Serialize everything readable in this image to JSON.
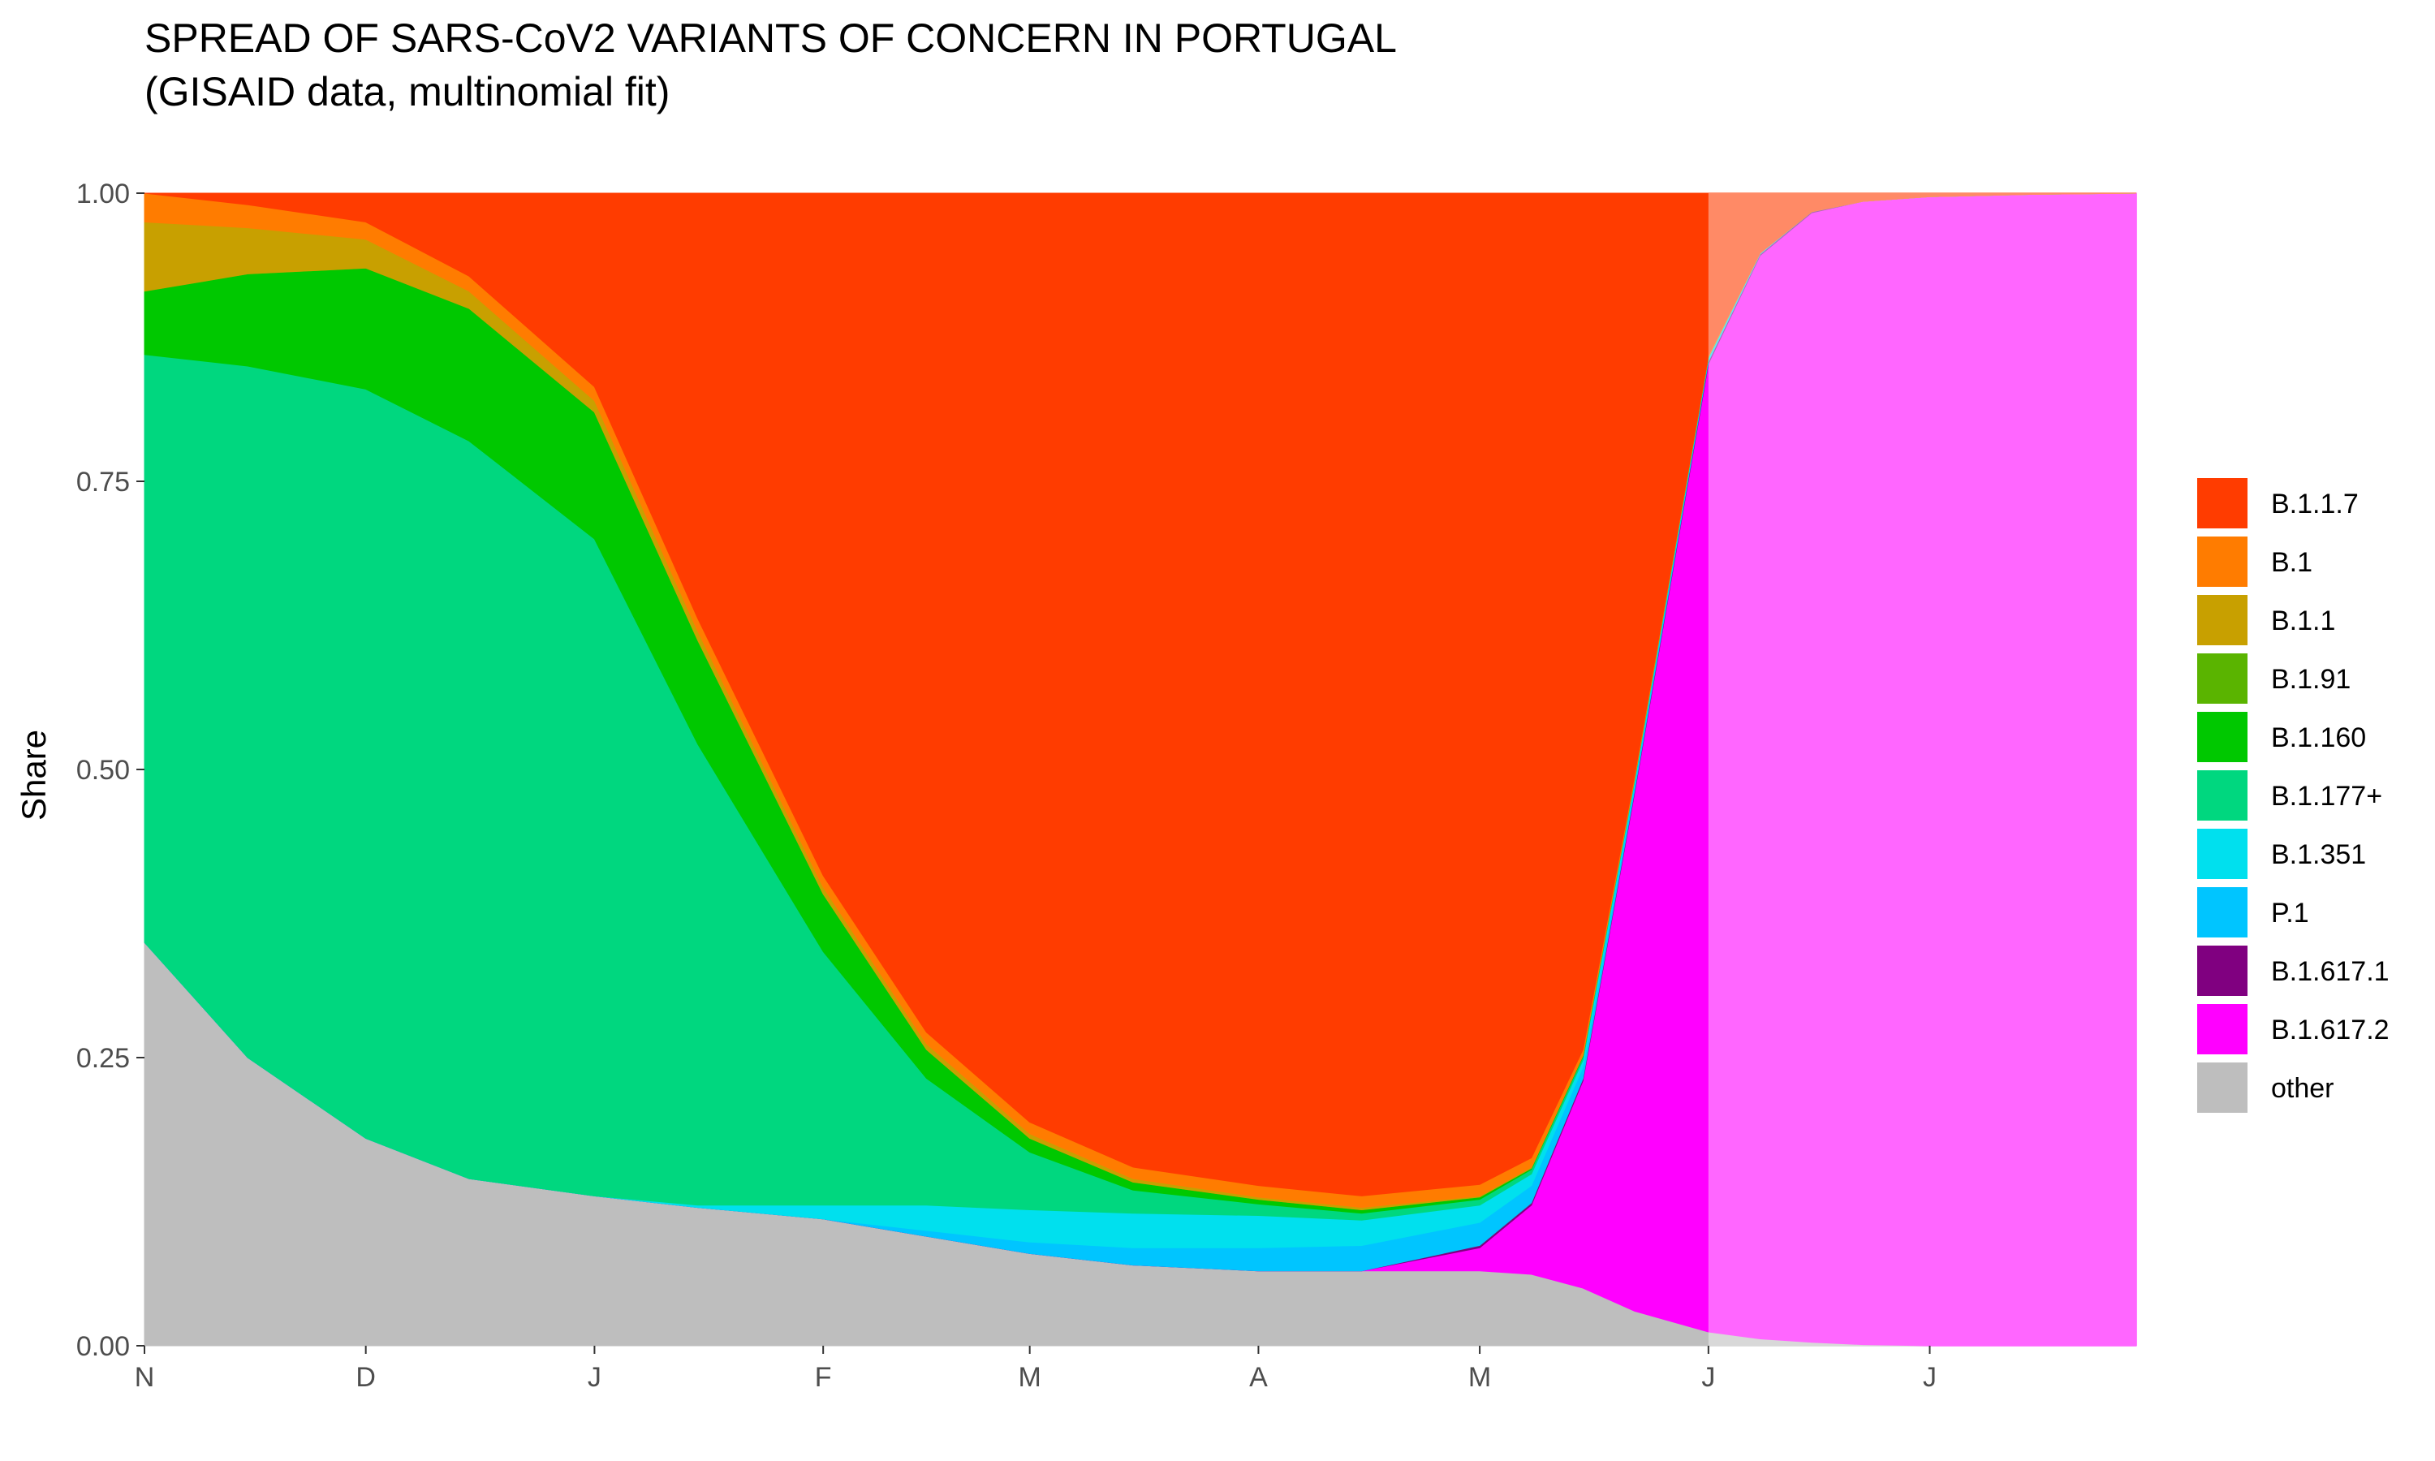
{
  "title": "SPREAD OF SARS-CoV2 VARIANTS OF CONCERN IN PORTUGAL",
  "subtitle": "(GISAID data, multinomial fit)",
  "chart_data": {
    "type": "area",
    "stacked": true,
    "ylabel": "Share",
    "xlabel": "",
    "ylim": [
      0,
      1
    ],
    "y_ticks": [
      "0.00",
      "0.25",
      "0.50",
      "0.75",
      "1.00"
    ],
    "y_tick_values": [
      0,
      0.25,
      0.5,
      0.75,
      1
    ],
    "x_tick_labels": [
      "N",
      "D",
      "J",
      "F",
      "M",
      "A",
      "M",
      "J",
      "J"
    ],
    "x_tick_dates": [
      "2020-11-01",
      "2020-12-01",
      "2021-01-01",
      "2021-02-01",
      "2021-03-01",
      "2021-04-01",
      "2021-05-01",
      "2021-06-01",
      "2021-07-01"
    ],
    "xlim": [
      "2020-11-01",
      "2021-07-29"
    ],
    "fit_end_date": "2021-06-01",
    "grid": false,
    "legend_position": "right",
    "x": [
      "2020-11-01",
      "2020-11-15",
      "2020-12-01",
      "2020-12-15",
      "2021-01-01",
      "2021-01-15",
      "2021-02-01",
      "2021-02-15",
      "2021-03-01",
      "2021-03-15",
      "2021-04-01",
      "2021-04-15",
      "2021-05-01",
      "2021-05-08",
      "2021-05-15",
      "2021-05-22",
      "2021-06-01",
      "2021-06-08",
      "2021-06-15",
      "2021-06-22",
      "2021-07-01",
      "2021-07-15",
      "2021-07-29"
    ],
    "series": [
      {
        "name": "other",
        "color": "#bebebe",
        "values": [
          0.35,
          0.25,
          0.18,
          0.145,
          0.13,
          0.12,
          0.11,
          0.095,
          0.08,
          0.07,
          0.065,
          0.065,
          0.065,
          0.062,
          0.05,
          0.03,
          0.012,
          0.006,
          0.003,
          0.001,
          0.0,
          0.0,
          0.0
        ]
      },
      {
        "name": "B.1.617.2",
        "color": "#ff00ff",
        "values": [
          0.0,
          0.0,
          0.0,
          0.0,
          0.0,
          0.0,
          0.0,
          0.0,
          0.0,
          0.0,
          0.0,
          0.0,
          0.02,
          0.06,
          0.18,
          0.45,
          0.84,
          0.94,
          0.98,
          0.992,
          0.997,
          0.999,
          1.0
        ]
      },
      {
        "name": "B.1.617.1",
        "color": "#800080",
        "values": [
          0.0,
          0.0,
          0.0,
          0.0,
          0.0,
          0.0,
          0.0,
          0.0,
          0.0,
          0.0,
          0.0,
          0.0,
          0.002,
          0.002,
          0.002,
          0.002,
          0.002,
          0.001,
          0.001,
          0.0,
          0.0,
          0.0,
          0.0
        ]
      },
      {
        "name": "P.1",
        "color": "#00c5ff",
        "values": [
          0.0,
          0.0,
          0.0,
          0.0,
          0.0,
          0.0,
          0.0,
          0.005,
          0.01,
          0.015,
          0.02,
          0.022,
          0.02,
          0.015,
          0.01,
          0.005,
          0.002,
          0.001,
          0.0,
          0.0,
          0.0,
          0.0,
          0.0
        ]
      },
      {
        "name": "B.1.351",
        "color": "#00e0ee",
        "values": [
          0.0,
          0.0,
          0.0,
          0.0,
          0.0,
          0.002,
          0.012,
          0.022,
          0.028,
          0.03,
          0.028,
          0.022,
          0.015,
          0.01,
          0.006,
          0.003,
          0.001,
          0.0,
          0.0,
          0.0,
          0.0,
          0.0,
          0.0
        ]
      },
      {
        "name": "B.1.177+",
        "color": "#00d77f",
        "values": [
          0.51,
          0.6,
          0.65,
          0.64,
          0.57,
          0.4,
          0.22,
          0.11,
          0.05,
          0.02,
          0.01,
          0.006,
          0.005,
          0.004,
          0.003,
          0.002,
          0.001,
          0.0,
          0.0,
          0.0,
          0.0,
          0.0,
          0.0
        ]
      },
      {
        "name": "B.1.160",
        "color": "#00c800",
        "values": [
          0.055,
          0.08,
          0.105,
          0.115,
          0.11,
          0.09,
          0.05,
          0.025,
          0.012,
          0.007,
          0.004,
          0.003,
          0.002,
          0.001,
          0.001,
          0.0,
          0.0,
          0.0,
          0.0,
          0.0,
          0.0,
          0.0,
          0.0
        ]
      },
      {
        "name": "B.1.91",
        "color": "#5ab400",
        "values": [
          0.0,
          0.0,
          0.0,
          0.0,
          0.0,
          0.0,
          0.0,
          0.0,
          0.0,
          0.0,
          0.0,
          0.0,
          0.0,
          0.0,
          0.0,
          0.0,
          0.0,
          0.0,
          0.0,
          0.0,
          0.0,
          0.0,
          0.0
        ]
      },
      {
        "name": "B.1.1",
        "color": "#c8a000",
        "values": [
          0.06,
          0.04,
          0.025,
          0.015,
          0.01,
          0.008,
          0.006,
          0.005,
          0.004,
          0.003,
          0.002,
          0.002,
          0.001,
          0.001,
          0.0,
          0.0,
          0.0,
          0.0,
          0.0,
          0.0,
          0.0,
          0.0,
          0.0
        ]
      },
      {
        "name": "B.1",
        "color": "#ff7c00",
        "values": [
          0.025,
          0.02,
          0.015,
          0.013,
          0.012,
          0.011,
          0.01,
          0.01,
          0.01,
          0.01,
          0.01,
          0.01,
          0.01,
          0.008,
          0.005,
          0.003,
          0.001,
          0.0,
          0.0,
          0.0,
          0.0,
          0.0,
          0.0
        ]
      },
      {
        "name": "B.1.1.7",
        "color": "#ff3c00",
        "values": [
          0.0,
          0.01,
          0.025,
          0.072,
          0.168,
          0.369,
          0.592,
          0.728,
          0.806,
          0.845,
          0.861,
          0.87,
          0.86,
          0.837,
          0.743,
          0.505,
          0.141,
          0.052,
          0.016,
          0.007,
          0.003,
          0.001,
          0.0
        ]
      }
    ],
    "legend_order": [
      "B.1.1.7",
      "B.1",
      "B.1.1",
      "B.1.91",
      "B.1.160",
      "B.1.177+",
      "B.1.351",
      "P.1",
      "B.1.617.1",
      "B.1.617.2",
      "other"
    ]
  }
}
